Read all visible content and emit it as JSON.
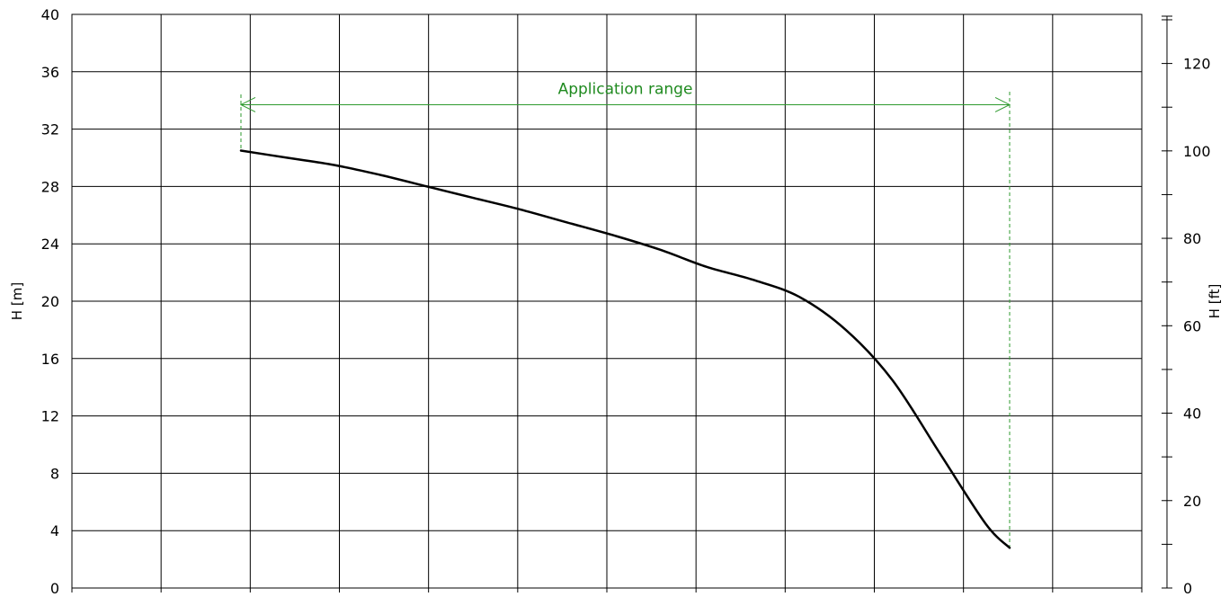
{
  "chart_data": {
    "type": "line",
    "title": "",
    "xlabel": "",
    "ylabel": "H [m]",
    "y2label": "H [ft]",
    "ylim": [
      0,
      40
    ],
    "y2lim": [
      0,
      131.23
    ],
    "y_ticks": [
      "0",
      "4",
      "8",
      "12",
      "16",
      "20",
      "24",
      "28",
      "32",
      "36",
      "40"
    ],
    "y2_ticks": [
      "0",
      "20",
      "40",
      "60",
      "80",
      "100",
      "120"
    ],
    "x_gridlines": 12,
    "grid": true,
    "colors": {
      "curve": "#000000",
      "range": "#2e9a2e",
      "range_text": "#1f8a1f",
      "grid": "#000000"
    },
    "series": [
      {
        "values": [
          [
            0.0,
            30.5
          ],
          [
            0.5,
            30.0
          ],
          [
            1.0,
            29.5
          ],
          [
            1.5,
            28.8
          ],
          [
            2.0,
            28.0
          ],
          [
            2.5,
            27.2
          ],
          [
            3.0,
            26.4
          ],
          [
            3.5,
            25.5
          ],
          [
            4.0,
            24.6
          ],
          [
            4.5,
            23.6
          ],
          [
            5.0,
            22.4
          ],
          [
            5.5,
            21.5
          ],
          [
            6.0,
            20.3
          ],
          [
            6.5,
            18.0
          ],
          [
            7.0,
            14.5
          ],
          [
            7.5,
            9.5
          ],
          [
            8.0,
            4.5
          ],
          [
            8.26,
            2.8
          ]
        ]
      }
    ],
    "annotations": [
      {
        "type": "range",
        "label": "Application range",
        "x_start": 0.0,
        "x_end": 8.26,
        "y": 33.7
      }
    ]
  }
}
